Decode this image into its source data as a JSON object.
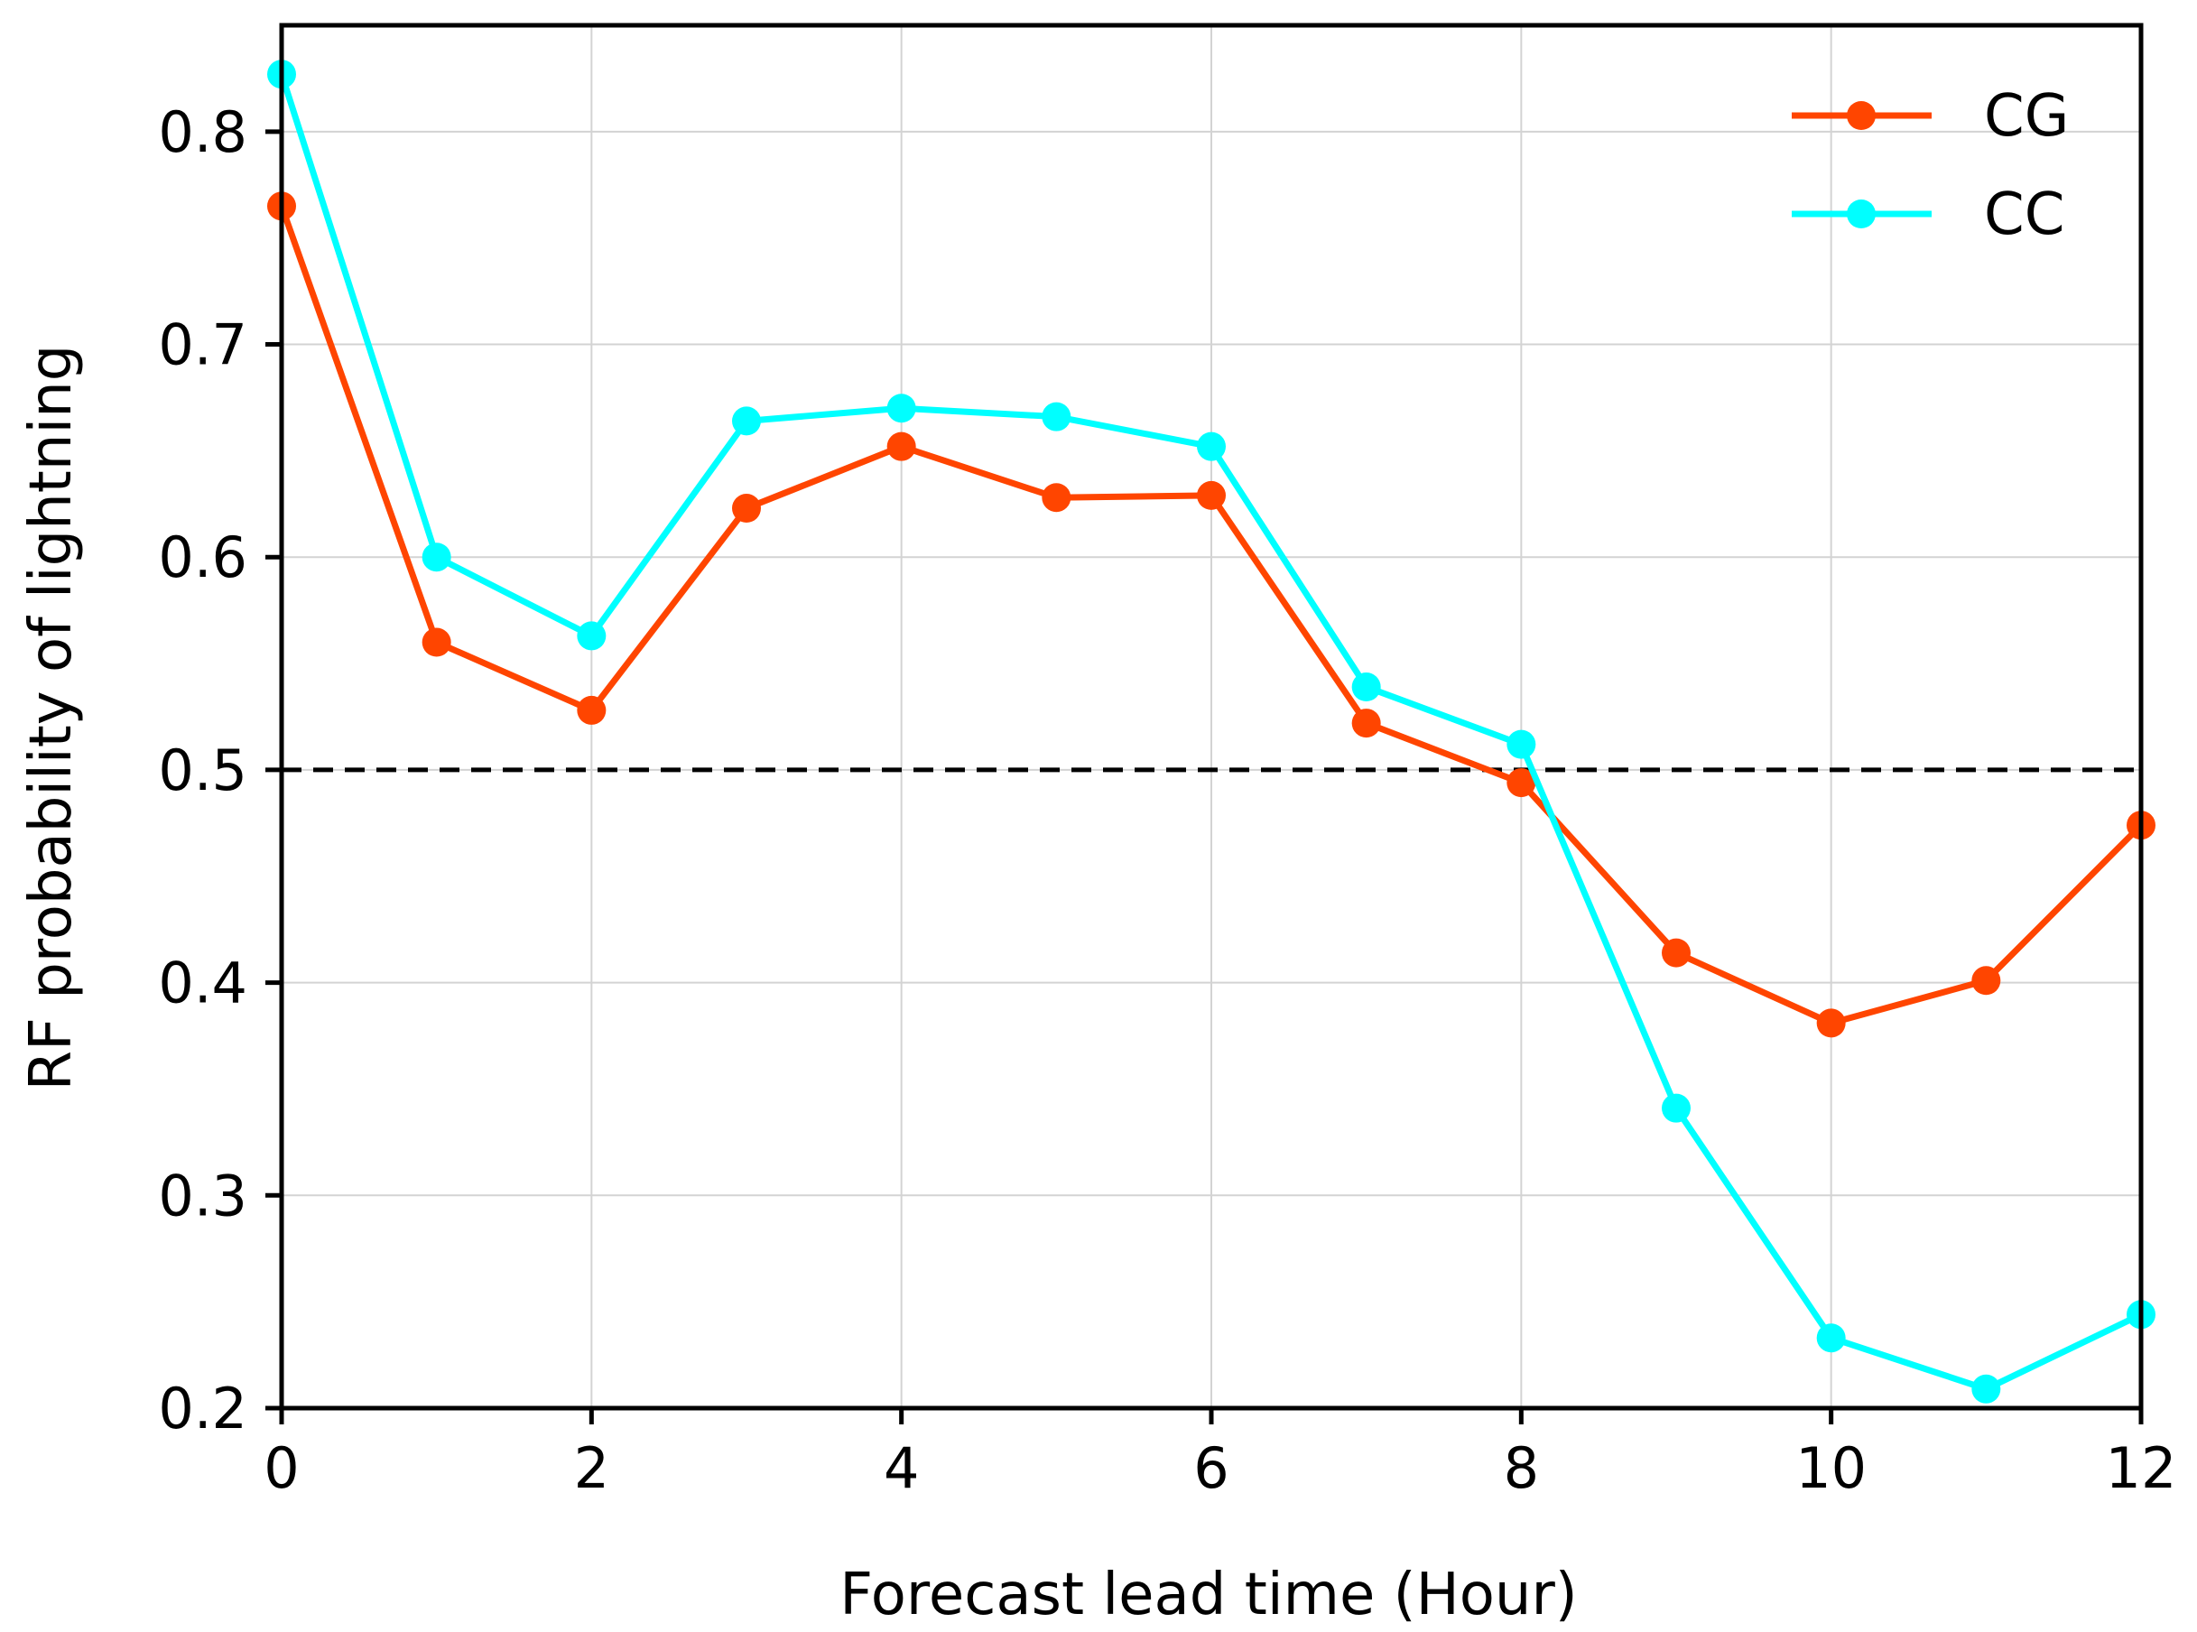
{
  "chart_data": {
    "type": "line",
    "title": "",
    "xlabel": "Forecast lead time (Hour)",
    "ylabel": "RF probability of lightning",
    "xlim": [
      0,
      12
    ],
    "ylim": [
      0.2,
      0.85
    ],
    "xticks": [
      0,
      2,
      4,
      6,
      8,
      10,
      12
    ],
    "xtick_labels": [
      "0",
      "2",
      "4",
      "6",
      "8",
      "10",
      "12"
    ],
    "yticks": [
      0.2,
      0.3,
      0.4,
      0.5,
      0.6,
      0.7,
      0.8
    ],
    "ytick_labels": [
      "0.2",
      "0.3",
      "0.4",
      "0.5",
      "0.6",
      "0.7",
      "0.8"
    ],
    "grid": true,
    "legend_position": "top-right",
    "reference_line": {
      "y": 0.5,
      "style": "dashed",
      "color": "#000000"
    },
    "x": [
      0,
      1,
      2,
      3,
      4,
      5,
      6,
      7,
      8,
      9,
      10,
      11,
      12
    ],
    "series": [
      {
        "name": "CG",
        "color": "#ff4500",
        "values": [
          0.765,
          0.56,
          0.528,
          0.623,
          0.652,
          0.628,
          0.629,
          0.522,
          0.494,
          0.414,
          0.381,
          0.401,
          0.474
        ]
      },
      {
        "name": "CC",
        "color": "#00ffff",
        "values": [
          0.827,
          0.6,
          0.563,
          0.664,
          0.67,
          0.666,
          0.652,
          0.539,
          0.512,
          0.341,
          0.233,
          0.209,
          0.244
        ]
      }
    ]
  }
}
